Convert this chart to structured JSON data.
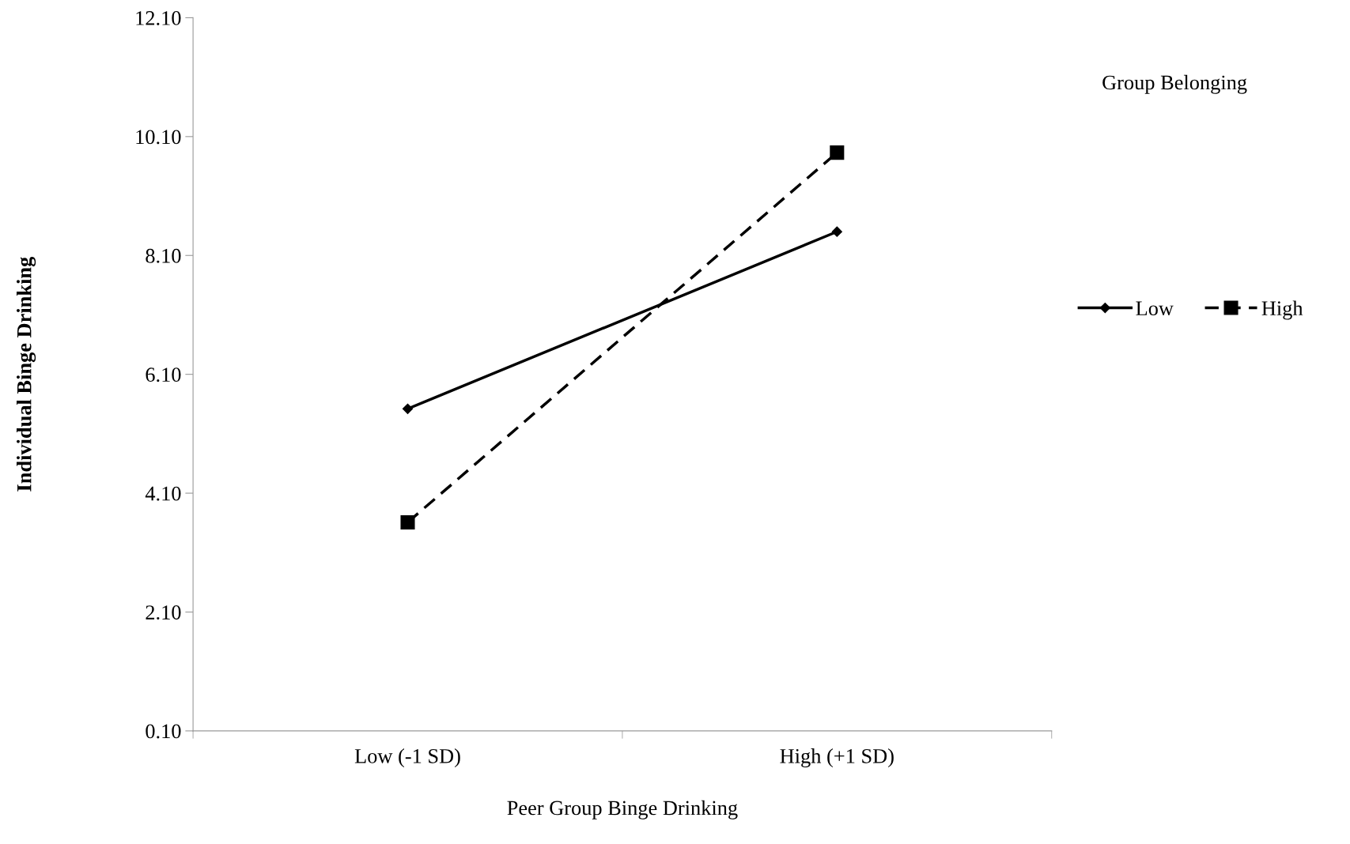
{
  "chart_data": {
    "type": "line",
    "xlabel": "Peer Group Binge Drinking",
    "ylabel": "Individual Binge Drinking",
    "legend_title": "Group Belonging",
    "categories": [
      "Low (-1 SD)",
      "High (+1 SD)"
    ],
    "series": [
      {
        "name": "Low",
        "color": "#000000",
        "values": [
          5.52,
          8.5
        ],
        "marker": "diamond",
        "line_style": "solid"
      },
      {
        "name": "High",
        "color": "#000000",
        "values": [
          3.61,
          9.83
        ],
        "marker": "square",
        "line_style": "dashed"
      }
    ],
    "ylim": [
      0.1,
      12.1
    ],
    "yticks": [
      {
        "value": 0.1,
        "label": "0.10"
      },
      {
        "value": 2.1,
        "label": "2.10"
      },
      {
        "value": 4.1,
        "label": "4.10"
      },
      {
        "value": 6.1,
        "label": "6.10"
      },
      {
        "value": 8.1,
        "label": "8.10"
      },
      {
        "value": 10.1,
        "label": "10.10"
      },
      {
        "value": 12.1,
        "label": "12.10"
      }
    ],
    "grid": false,
    "legend": "right"
  }
}
